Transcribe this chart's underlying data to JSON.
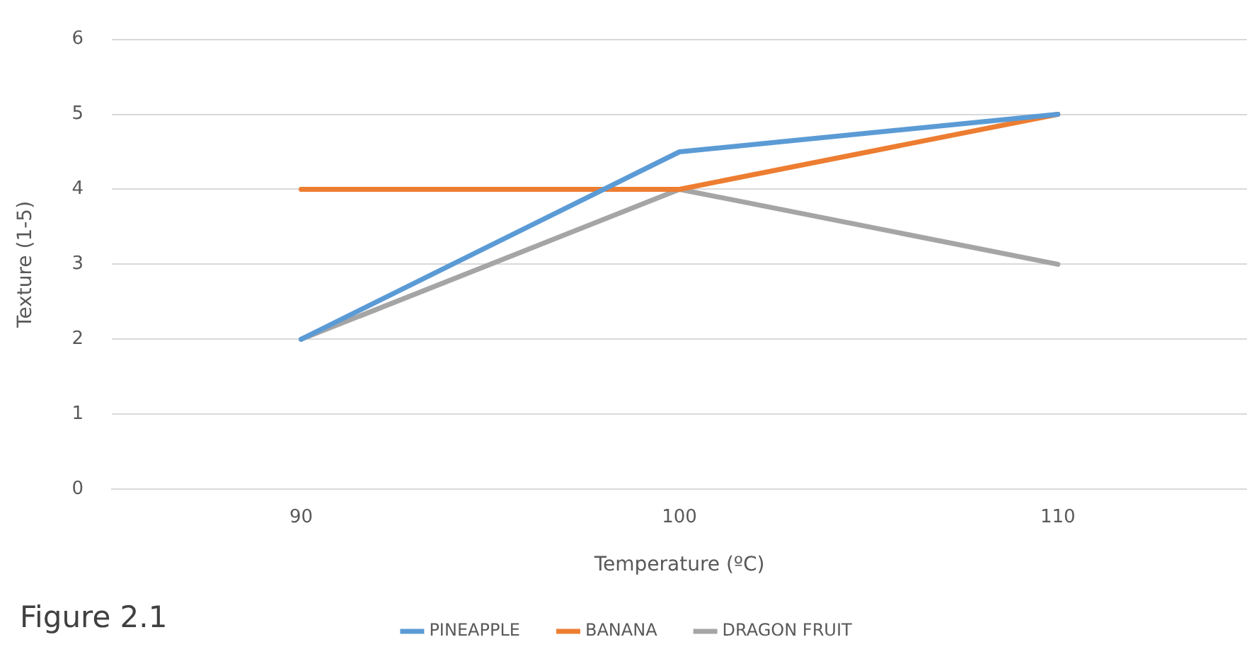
{
  "chart_data": {
    "type": "line",
    "xlabel": "Temperature (ºC)",
    "ylabel": "Texture (1-5)",
    "categories": [
      "90",
      "100",
      "110"
    ],
    "series": [
      {
        "name": "PINEAPPLE",
        "color": "#5b9bd5",
        "values": [
          2,
          4.5,
          5
        ]
      },
      {
        "name": "BANANA",
        "color": "#ed7d31",
        "values": [
          4,
          4,
          5
        ]
      },
      {
        "name": "DRAGON FRUIT",
        "color": "#a5a5a5",
        "values": [
          2,
          4,
          3
        ]
      }
    ],
    "ylim": [
      0,
      6
    ],
    "yticks": [
      0,
      1,
      2,
      3,
      4,
      5,
      6
    ],
    "grid": "y",
    "legend": "bottom",
    "marker": "none",
    "line_style": "solid",
    "annotations": [
      "Figure 2.1"
    ]
  }
}
